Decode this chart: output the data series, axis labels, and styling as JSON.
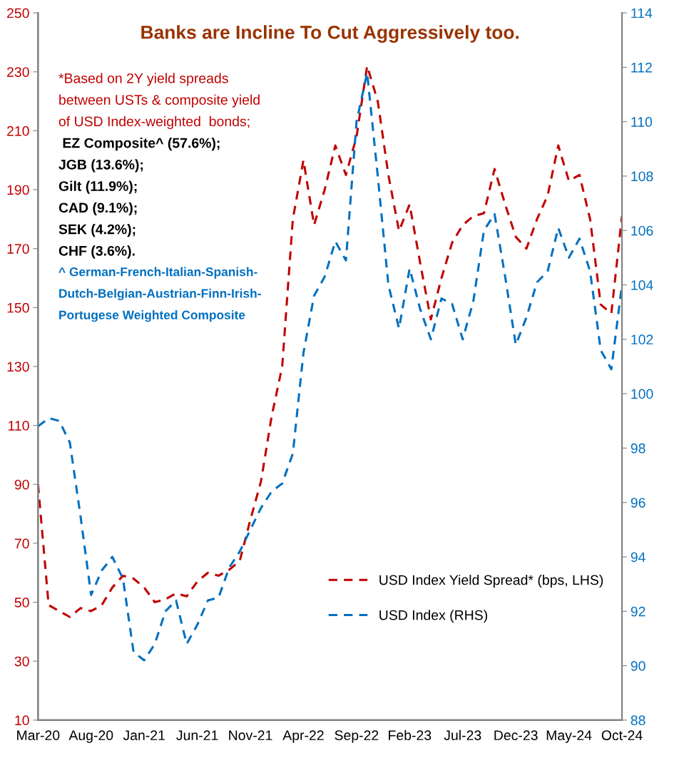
{
  "chart_data": {
    "type": "line",
    "title": "Banks are Incline To Cut Aggressively too.",
    "categories": [
      "Mar-20",
      null,
      null,
      null,
      null,
      "Aug-20",
      null,
      null,
      null,
      null,
      "Jan-21",
      null,
      null,
      null,
      null,
      "Jun-21",
      null,
      null,
      null,
      null,
      "Nov-21",
      null,
      null,
      null,
      null,
      "Apr-22",
      null,
      null,
      null,
      null,
      "Sep-22",
      null,
      null,
      null,
      null,
      "Feb-23",
      null,
      null,
      null,
      null,
      "Jul-23",
      null,
      null,
      null,
      null,
      "Dec-23",
      null,
      null,
      null,
      null,
      "May-24",
      null,
      null,
      null,
      null,
      "Oct-24"
    ],
    "series": [
      {
        "name": "USD Index Yield Spread* (bps, LHS)",
        "color": "#c00000",
        "values": [
          90,
          49,
          47,
          45,
          48,
          47,
          49,
          55,
          59,
          58,
          55,
          50,
          51,
          53,
          52,
          57,
          60,
          59,
          61,
          64,
          78,
          91,
          113,
          130,
          180,
          200,
          178,
          190,
          205,
          195,
          208,
          232,
          220,
          195,
          176,
          185,
          165,
          146,
          160,
          172,
          178,
          181,
          182,
          197,
          185,
          174,
          170,
          180,
          188,
          205,
          193,
          195,
          180,
          151,
          148,
          181
        ]
      },
      {
        "name": "USD Index (RHS)",
        "color": "#0070c0",
        "axis": "y2",
        "values": [
          98.8,
          99.1,
          99.0,
          98.2,
          95.5,
          92.6,
          93.5,
          94.0,
          93.2,
          90.5,
          90.2,
          90.8,
          92.0,
          92.4,
          90.8,
          91.5,
          92.4,
          92.5,
          93.6,
          94.2,
          95.0,
          95.8,
          96.4,
          96.7,
          97.8,
          101.5,
          103.6,
          104.3,
          105.6,
          104.9,
          110.0,
          111.8,
          108.0,
          104.0,
          102.4,
          104.6,
          103.1,
          102.0,
          103.5,
          103.3,
          102.0,
          103.4,
          106.0,
          106.6,
          104.3,
          101.8,
          102.8,
          104.1,
          104.5,
          106.1,
          105.0,
          105.7,
          104.5,
          101.6,
          100.9,
          104.0
        ]
      }
    ],
    "ylim": [
      10,
      250
    ],
    "yticks": [
      10,
      30,
      50,
      70,
      90,
      110,
      130,
      150,
      170,
      190,
      210,
      230,
      250
    ],
    "y2lim": [
      88,
      114
    ],
    "y2ticks": [
      88,
      90,
      92,
      94,
      96,
      98,
      100,
      102,
      104,
      106,
      108,
      110,
      112,
      114
    ],
    "line_style": "dashed",
    "marker": "none",
    "grid": false,
    "legend": "bottom right",
    "annotations": [
      "*Based on 2Y yield spreads",
      "between USTs & composite yield",
      "of USD Index-weighted  bonds;",
      " EZ Composite^ (57.6%);",
      "JGB (13.6%);",
      "Gilt (11.9%);",
      "CAD (9.1%);",
      "SEK (4.2%);",
      "CHF (3.6%).",
      "^ German-French-Italian-Spanish-",
      "Dutch-Belgian-Austrian-Finn-Irish-",
      "Portugese Weighted Composite"
    ]
  }
}
